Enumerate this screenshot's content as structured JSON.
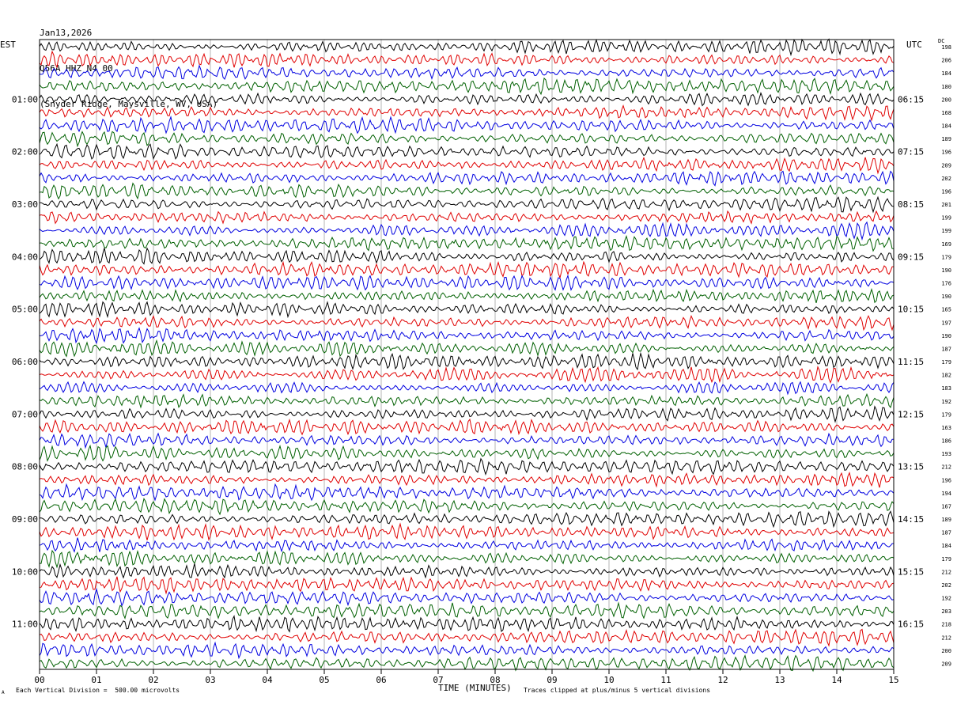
{
  "header": {
    "date": "Jan13,2026",
    "station": "Q56A HHZ N4 00",
    "location": "(Snyder Ridge, Maysville, WV, USA)"
  },
  "left_axis_title": "EST",
  "right_axis_title": "UTC",
  "dc_label": "DC",
  "footer": {
    "scale_note": "Each Vertical Division =  500.00 microvolts",
    "clip_note": "Traces clipped at plus/minus 5 vertical divisions",
    "corner_mark": "A"
  },
  "colors": {
    "trace_cycle": [
      "#000000",
      "#e00000",
      "#0000e0",
      "#006000"
    ],
    "grid": "#b4b4b4",
    "frame": "#000000"
  },
  "chart_data": {
    "type": "line",
    "title": "Q56A HHZ N4 00",
    "xlabel": "TIME (MINUTES)",
    "xlim": [
      0,
      15
    ],
    "x_ticks": [
      "00",
      "01",
      "02",
      "03",
      "04",
      "05",
      "06",
      "07",
      "08",
      "09",
      "10",
      "11",
      "12",
      "13",
      "14",
      "15"
    ],
    "rows_per_hour": 4,
    "row_count": 48,
    "left_time_labels": [
      "01:00",
      "02:00",
      "03:00",
      "04:00",
      "05:00",
      "06:00",
      "07:00",
      "08:00",
      "09:00",
      "10:00",
      "11:00"
    ],
    "right_time_labels": [
      "06:15",
      "07:15",
      "08:15",
      "09:15",
      "10:15",
      "11:15",
      "12:15",
      "13:15",
      "14:15",
      "15:15",
      "16:15"
    ],
    "label_row_index": [
      4,
      8,
      12,
      16,
      20,
      24,
      28,
      32,
      36,
      40,
      44
    ],
    "dc_offsets": [
      198,
      206,
      184,
      180,
      200,
      168,
      184,
      189,
      196,
      209,
      202,
      196,
      201,
      199,
      199,
      169,
      179,
      190,
      176,
      190,
      165,
      197,
      190,
      187,
      179,
      182,
      183,
      192,
      179,
      163,
      186,
      193,
      212,
      196,
      194,
      167,
      189,
      187,
      184,
      179,
      212,
      202,
      192,
      203,
      218,
      212,
      200,
      209
    ],
    "vertical_division_microvolts": 500.0,
    "clip_divisions": 5,
    "grid": true
  }
}
